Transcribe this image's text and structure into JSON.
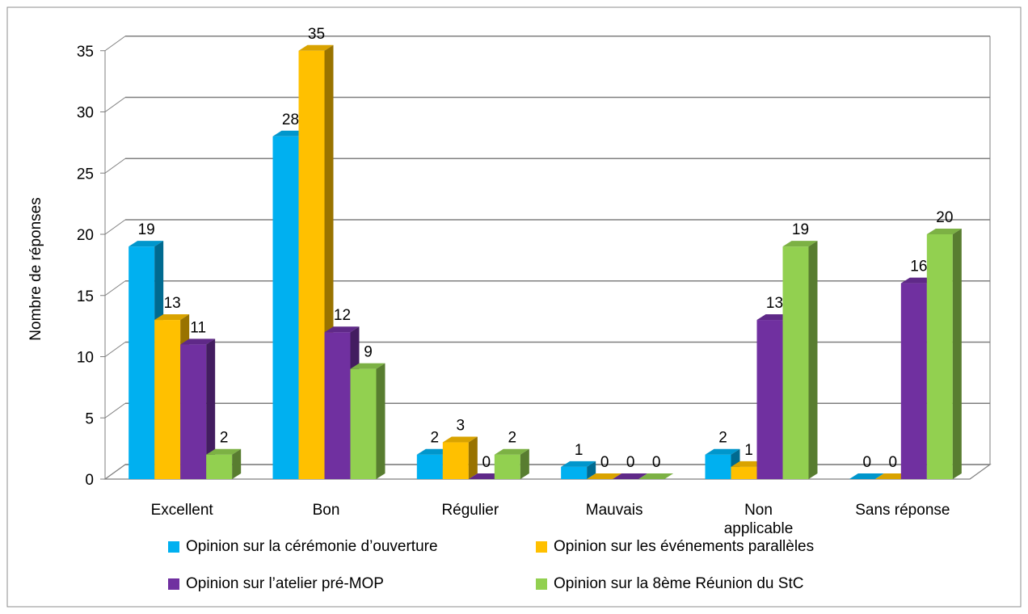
{
  "chart_data": {
    "type": "bar",
    "title": "",
    "xlabel": "",
    "ylabel": "Nombre de réponses",
    "ylim": [
      0,
      35
    ],
    "yticks": [
      0,
      5,
      10,
      15,
      20,
      25,
      30,
      35
    ],
    "grid": true,
    "legend_position": "bottom",
    "categories": [
      "Excellent",
      "Bon",
      "Régulier",
      "Mauvais",
      "Non applicable",
      "Sans réponse"
    ],
    "series": [
      {
        "name": "Opinion sur la cérémonie d’ouverture",
        "color": "#00B0F0",
        "values": [
          19,
          28,
          2,
          1,
          2,
          0
        ]
      },
      {
        "name": "Opinion sur les événements parallèles",
        "color": "#FFC000",
        "values": [
          13,
          35,
          3,
          0,
          1,
          0
        ]
      },
      {
        "name": "Opinion sur l’atelier pré-MOP",
        "color": "#7030A0",
        "values": [
          11,
          12,
          0,
          0,
          13,
          16
        ]
      },
      {
        "name": "Opinion sur la 8ème Réunion du StC",
        "color": "#92D050",
        "values": [
          2,
          9,
          2,
          0,
          19,
          20
        ]
      }
    ]
  }
}
